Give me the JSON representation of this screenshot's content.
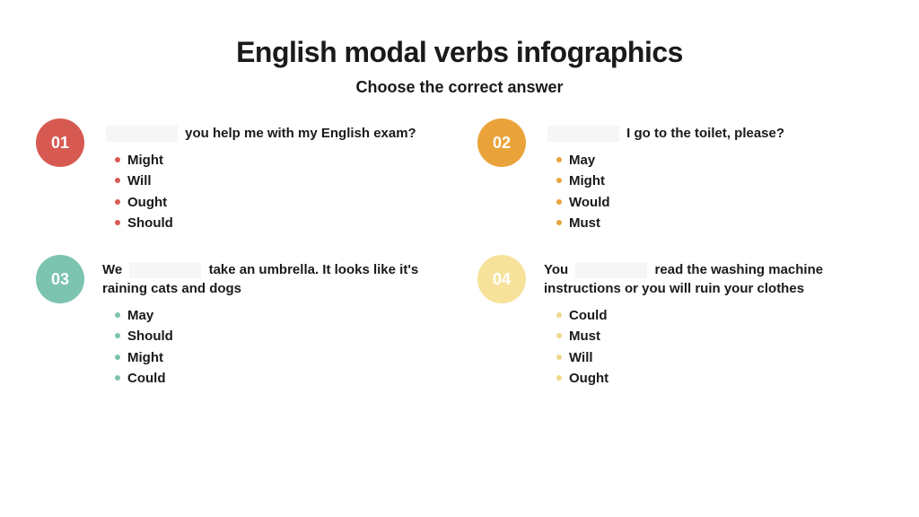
{
  "title": "English modal verbs infographics",
  "subtitle": "Choose the correct answer",
  "colors": {
    "q1": {
      "circle": "#d75a52",
      "bullet": "#d75a52",
      "num_text": "#ffffff"
    },
    "q2": {
      "circle": "#eaa33b",
      "bullet": "#eaa33b",
      "num_text": "#ffffff"
    },
    "q3": {
      "circle": "#7cc3b0",
      "bullet": "#7cc3b0",
      "num_text": "#ffffff"
    },
    "q4": {
      "circle": "#f7e29c",
      "bullet": "#f0d88a",
      "num_text": "#ffffff"
    }
  },
  "questions": [
    {
      "num": "01",
      "pre": "",
      "post": " you help me with my English exam?",
      "options": [
        "Might",
        "Will",
        "Ought",
        "Should"
      ]
    },
    {
      "num": "02",
      "pre": "",
      "post": " I go to the toilet, please?",
      "options": [
        "May",
        "Might",
        "Would",
        "Must"
      ]
    },
    {
      "num": "03",
      "pre": "We ",
      "post": " take an umbrella. It looks like it's raining cats and dogs",
      "options": [
        "May",
        "Should",
        "Might",
        "Could"
      ]
    },
    {
      "num": "04",
      "pre": "You ",
      "post": " read the washing machine instructions or you will ruin your clothes",
      "options": [
        "Could",
        "Must",
        "Will",
        "Ought"
      ]
    }
  ]
}
